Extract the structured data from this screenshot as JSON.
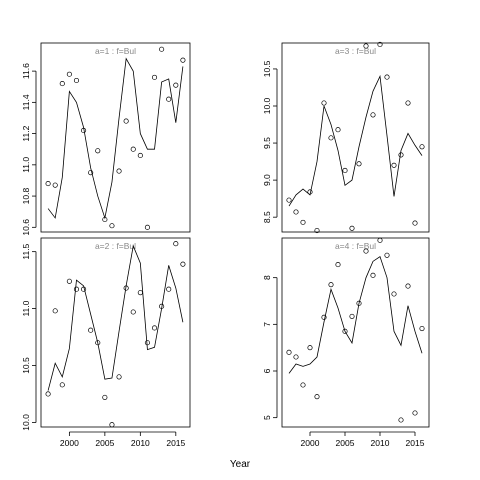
{
  "figure": {
    "xlabel": "Year"
  },
  "chart_data": [
    {
      "type": "scatter",
      "panel_label": "a=1  :  f=Bul",
      "x_range": [
        1996,
        2017
      ],
      "ylim": [
        10.57,
        11.78
      ],
      "x_ticks": [
        2000,
        2005,
        2010,
        2015
      ],
      "show_x_axis": false,
      "y_ticks": [
        10.6,
        10.8,
        11.0,
        11.2,
        11.4,
        11.6
      ],
      "y_tick_labels": [
        "10.6",
        "10.8",
        "11.0",
        "11.2",
        "11.4",
        "11.6"
      ],
      "series": [
        {
          "style": "points",
          "x": [
            1997,
            1998,
            1999,
            2000,
            2001,
            2002,
            2003,
            2004,
            2005,
            2006,
            2007,
            2008,
            2009,
            2010,
            2011,
            2012,
            2013,
            2014,
            2015,
            2016
          ],
          "y": [
            10.88,
            10.87,
            11.52,
            11.58,
            11.54,
            11.22,
            10.95,
            11.09,
            10.65,
            10.61,
            10.96,
            11.28,
            11.1,
            11.06,
            10.6,
            11.56,
            11.74,
            11.42,
            11.51,
            11.67
          ]
        },
        {
          "style": "line",
          "x": [
            1997,
            1998,
            1999,
            2000,
            2001,
            2002,
            2003,
            2004,
            2005,
            2006,
            2007,
            2008,
            2009,
            2010,
            2011,
            2012,
            2013,
            2014,
            2015,
            2016
          ],
          "y": [
            10.72,
            10.66,
            10.92,
            11.47,
            11.4,
            11.24,
            10.98,
            10.8,
            10.66,
            10.89,
            11.3,
            11.68,
            11.6,
            11.2,
            11.1,
            11.1,
            11.53,
            11.55,
            11.27,
            11.63
          ]
        }
      ]
    },
    {
      "type": "scatter",
      "panel_label": "a=3  :  f=Bul",
      "x_range": [
        1996,
        2017
      ],
      "ylim": [
        8.3,
        10.85
      ],
      "x_ticks": [
        2000,
        2005,
        2010,
        2015
      ],
      "show_x_axis": false,
      "y_ticks": [
        8.5,
        9.0,
        9.5,
        10.0,
        10.5
      ],
      "y_tick_labels": [
        "8.5",
        "9.0",
        "9.5",
        "10.0",
        "10.5"
      ],
      "series": [
        {
          "style": "points",
          "x": [
            1997,
            1998,
            1999,
            2000,
            2001,
            2002,
            2003,
            2004,
            2005,
            2006,
            2007,
            2008,
            2009,
            2010,
            2011,
            2012,
            2013,
            2014,
            2015,
            2016
          ],
          "y": [
            8.73,
            8.57,
            8.43,
            8.84,
            8.32,
            10.04,
            9.57,
            9.68,
            9.13,
            8.35,
            9.22,
            10.81,
            9.88,
            10.83,
            10.39,
            9.2,
            9.34,
            10.04,
            8.42,
            9.45
          ]
        },
        {
          "style": "line",
          "x": [
            1997,
            1998,
            1999,
            2000,
            2001,
            2002,
            2003,
            2004,
            2005,
            2006,
            2007,
            2008,
            2009,
            2010,
            2011,
            2012,
            2013,
            2014,
            2015,
            2016
          ],
          "y": [
            8.65,
            8.8,
            8.88,
            8.8,
            9.25,
            10.0,
            9.75,
            9.4,
            8.93,
            9.0,
            9.45,
            9.85,
            10.2,
            10.4,
            9.6,
            8.78,
            9.4,
            9.63,
            9.47,
            9.33
          ]
        }
      ]
    },
    {
      "type": "scatter",
      "panel_label": "a=2  :  f=Bul",
      "x_range": [
        1996,
        2017
      ],
      "ylim": [
        9.96,
        11.62
      ],
      "x_ticks": [
        2000,
        2005,
        2010,
        2015
      ],
      "x_tick_labels": [
        "2000",
        "2005",
        "2010",
        "2015"
      ],
      "show_x_axis": true,
      "y_ticks": [
        10.0,
        10.5,
        11.0,
        11.5
      ],
      "y_tick_labels": [
        "10.0",
        "10.5",
        "11.0",
        "11.5"
      ],
      "series": [
        {
          "style": "points",
          "x": [
            1997,
            1998,
            1999,
            2000,
            2001,
            2002,
            2003,
            2004,
            2005,
            2006,
            2007,
            2008,
            2009,
            2010,
            2011,
            2012,
            2013,
            2014,
            2015,
            2016
          ],
          "y": [
            10.25,
            10.98,
            10.33,
            11.24,
            11.17,
            11.17,
            10.81,
            10.7,
            10.22,
            9.98,
            10.4,
            11.18,
            10.97,
            11.14,
            10.7,
            10.83,
            11.02,
            11.17,
            11.57,
            11.39
          ]
        },
        {
          "style": "line",
          "x": [
            1997,
            1998,
            1999,
            2000,
            2001,
            2002,
            2003,
            2004,
            2005,
            2006,
            2007,
            2008,
            2009,
            2010,
            2011,
            2012,
            2013,
            2014,
            2015,
            2016
          ],
          "y": [
            10.28,
            10.52,
            10.4,
            10.65,
            11.25,
            11.2,
            10.95,
            10.7,
            10.38,
            10.39,
            10.8,
            11.2,
            11.55,
            11.4,
            10.64,
            10.66,
            11.0,
            11.38,
            11.18,
            10.88
          ]
        }
      ]
    },
    {
      "type": "scatter",
      "panel_label": "a=4  :  f=Bul",
      "x_range": [
        1996,
        2017
      ],
      "ylim": [
        4.8,
        8.85
      ],
      "x_ticks": [
        2000,
        2005,
        2010,
        2015
      ],
      "x_tick_labels": [
        "2000",
        "2005",
        "2010",
        "2015"
      ],
      "show_x_axis": true,
      "y_ticks": [
        5,
        6,
        7,
        8
      ],
      "y_tick_labels": [
        "5",
        "6",
        "7",
        "8"
      ],
      "series": [
        {
          "style": "points",
          "x": [
            1997,
            1998,
            1999,
            2000,
            2001,
            2002,
            2003,
            2004,
            2005,
            2006,
            2007,
            2008,
            2009,
            2010,
            2011,
            2012,
            2013,
            2014,
            2015,
            2016
          ],
          "y": [
            6.4,
            6.3,
            5.7,
            6.5,
            5.45,
            7.15,
            7.85,
            8.28,
            6.85,
            7.17,
            7.45,
            8.57,
            8.05,
            8.8,
            8.48,
            7.65,
            4.95,
            7.82,
            5.1,
            6.91
          ]
        },
        {
          "style": "line",
          "x": [
            1997,
            1998,
            1999,
            2000,
            2001,
            2002,
            2003,
            2004,
            2005,
            2006,
            2007,
            2008,
            2009,
            2010,
            2011,
            2012,
            2013,
            2014,
            2015,
            2016
          ],
          "y": [
            5.95,
            6.15,
            6.1,
            6.15,
            6.3,
            7.05,
            7.75,
            7.35,
            6.85,
            6.6,
            7.45,
            8.0,
            8.35,
            8.45,
            8.0,
            6.85,
            6.55,
            7.4,
            6.85,
            6.38
          ]
        }
      ]
    }
  ]
}
